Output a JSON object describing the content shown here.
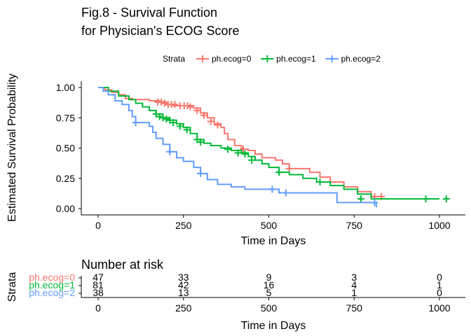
{
  "chart_data": [
    {
      "type": "line",
      "title": [
        "Fig.8 - Survival Function",
        "for Physician's ECOG Score"
      ],
      "xlabel": "Time in Days",
      "ylabel": "Estimated Survival Probability",
      "xlim": [
        0,
        1050
      ],
      "ylim": [
        0,
        1
      ],
      "xticks": [
        "0",
        "250",
        "500",
        "750",
        "1000"
      ],
      "yticks": [
        "0.00",
        "0.25",
        "0.50",
        "0.75",
        "1.00"
      ],
      "legend": {
        "title": "Strata",
        "position": "top"
      },
      "grid": false,
      "series": [
        {
          "name": "ph.ecog=0",
          "color": "#F8766D",
          "steps": [
            [
              0,
              1
            ],
            [
              20,
              0.98
            ],
            [
              40,
              0.96
            ],
            [
              60,
              0.94
            ],
            [
              80,
              0.91
            ],
            [
              100,
              0.9
            ],
            [
              150,
              0.89
            ],
            [
              180,
              0.88
            ],
            [
              200,
              0.86
            ],
            [
              220,
              0.85
            ],
            [
              280,
              0.83
            ],
            [
              300,
              0.79
            ],
            [
              320,
              0.75
            ],
            [
              340,
              0.7
            ],
            [
              360,
              0.67
            ],
            [
              370,
              0.62
            ],
            [
              380,
              0.57
            ],
            [
              400,
              0.52
            ],
            [
              420,
              0.49
            ],
            [
              440,
              0.48
            ],
            [
              460,
              0.45
            ],
            [
              480,
              0.42
            ],
            [
              520,
              0.4
            ],
            [
              540,
              0.37
            ],
            [
              560,
              0.33
            ],
            [
              620,
              0.3
            ],
            [
              650,
              0.26
            ],
            [
              680,
              0.22
            ],
            [
              720,
              0.18
            ],
            [
              760,
              0.14
            ],
            [
              800,
              0.1
            ],
            [
              830,
              0.1
            ]
          ],
          "censored": [
            [
              175,
              0.88
            ],
            [
              185,
              0.88
            ],
            [
              195,
              0.87
            ],
            [
              205,
              0.86
            ],
            [
              215,
              0.86
            ],
            [
              225,
              0.86
            ],
            [
              240,
              0.85
            ],
            [
              252,
              0.85
            ],
            [
              262,
              0.85
            ],
            [
              270,
              0.84
            ],
            [
              290,
              0.81
            ],
            [
              310,
              0.77
            ],
            [
              330,
              0.72
            ],
            [
              350,
              0.69
            ],
            [
              425,
              0.49
            ],
            [
              560,
              0.33
            ],
            [
              810,
              0.1
            ],
            [
              830,
              0.1
            ]
          ]
        },
        {
          "name": "ph.ecog=1",
          "color": "#00BA38",
          "steps": [
            [
              0,
              1
            ],
            [
              30,
              0.97
            ],
            [
              60,
              0.93
            ],
            [
              90,
              0.9
            ],
            [
              110,
              0.87
            ],
            [
              130,
              0.84
            ],
            [
              150,
              0.81
            ],
            [
              170,
              0.78
            ],
            [
              190,
              0.75
            ],
            [
              210,
              0.73
            ],
            [
              230,
              0.7
            ],
            [
              250,
              0.67
            ],
            [
              270,
              0.62
            ],
            [
              290,
              0.57
            ],
            [
              310,
              0.54
            ],
            [
              330,
              0.52
            ],
            [
              360,
              0.5
            ],
            [
              390,
              0.48
            ],
            [
              420,
              0.46
            ],
            [
              440,
              0.43
            ],
            [
              460,
              0.4
            ],
            [
              480,
              0.37
            ],
            [
              500,
              0.34
            ],
            [
              530,
              0.3
            ],
            [
              560,
              0.28
            ],
            [
              600,
              0.25
            ],
            [
              640,
              0.22
            ],
            [
              680,
              0.19
            ],
            [
              720,
              0.16
            ],
            [
              760,
              0.12
            ],
            [
              800,
              0.08
            ],
            [
              1000,
              0.08
            ]
          ],
          "censored": [
            [
              170,
              0.78
            ],
            [
              180,
              0.76
            ],
            [
              190,
              0.75
            ],
            [
              200,
              0.74
            ],
            [
              210,
              0.73
            ],
            [
              220,
              0.71
            ],
            [
              240,
              0.68
            ],
            [
              260,
              0.65
            ],
            [
              290,
              0.57
            ],
            [
              300,
              0.55
            ],
            [
              380,
              0.49
            ],
            [
              410,
              0.46
            ],
            [
              430,
              0.45
            ],
            [
              450,
              0.4
            ],
            [
              530,
              0.3
            ],
            [
              650,
              0.22
            ],
            [
              770,
              0.08
            ],
            [
              960,
              0.08
            ],
            [
              1020,
              0.08
            ]
          ]
        },
        {
          "name": "ph.ecog=2",
          "color": "#619CFF",
          "steps": [
            [
              0,
              1
            ],
            [
              15,
              0.97
            ],
            [
              30,
              0.94
            ],
            [
              50,
              0.89
            ],
            [
              70,
              0.86
            ],
            [
              90,
              0.81
            ],
            [
              100,
              0.76
            ],
            [
              110,
              0.71
            ],
            [
              150,
              0.68
            ],
            [
              160,
              0.63
            ],
            [
              170,
              0.58
            ],
            [
              190,
              0.53
            ],
            [
              210,
              0.47
            ],
            [
              230,
              0.42
            ],
            [
              250,
              0.39
            ],
            [
              280,
              0.34
            ],
            [
              300,
              0.29
            ],
            [
              320,
              0.24
            ],
            [
              350,
              0.2
            ],
            [
              390,
              0.18
            ],
            [
              430,
              0.16
            ],
            [
              530,
              0.13
            ],
            [
              700,
              0.05
            ],
            [
              810,
              0.05
            ],
            [
              815,
              0.01
            ]
          ],
          "censored": [
            [
              110,
              0.71
            ],
            [
              210,
              0.47
            ],
            [
              300,
              0.29
            ],
            [
              510,
              0.16
            ],
            [
              550,
              0.13
            ],
            [
              810,
              0.05
            ]
          ]
        }
      ]
    },
    {
      "type": "table",
      "title": "Number at risk",
      "ylabel": "Strata",
      "xlabel": "Time in Days",
      "times": [
        0,
        250,
        500,
        750,
        1000
      ],
      "xticks": [
        "0",
        "250",
        "500",
        "750",
        "1000"
      ],
      "rows": [
        {
          "label": "ph.ecog=0",
          "color": "#F8766D",
          "counts": [
            "47",
            "33",
            "9",
            "3",
            "0"
          ]
        },
        {
          "label": "ph.ecog=1",
          "color": "#00BA38",
          "counts": [
            "81",
            "42",
            "16",
            "4",
            "1"
          ]
        },
        {
          "label": "ph.ecog=2",
          "color": "#619CFF",
          "counts": [
            "38",
            "13",
            "5",
            "1",
            "0"
          ]
        }
      ]
    }
  ]
}
